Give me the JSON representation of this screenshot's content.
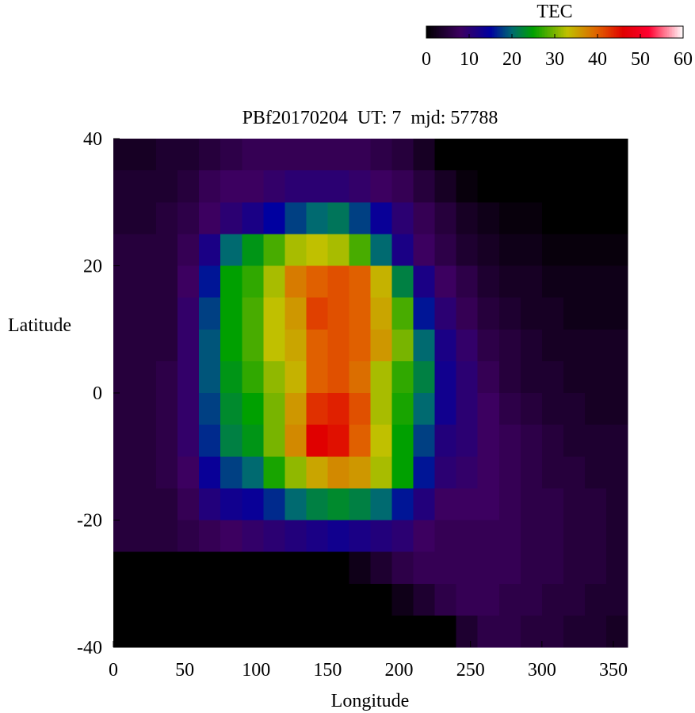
{
  "chart_data": {
    "type": "heatmap",
    "title": "PBf20170204  UT: 7  mjd: 57788",
    "colorbar_title": "TEC",
    "x_label": "Longitude",
    "y_label": "Latitude",
    "x": [
      7.5,
      22.5,
      37.5,
      52.5,
      67.5,
      82.5,
      97.5,
      112.5,
      127.5,
      142.5,
      157.5,
      172.5,
      187.5,
      202.5,
      217.5,
      232.5,
      247.5,
      262.5,
      277.5,
      292.5,
      307.5,
      322.5,
      337.5,
      352.5
    ],
    "y": [
      37.5,
      32.5,
      27.5,
      22.5,
      17.5,
      12.5,
      7.5,
      2.5,
      -2.5,
      -7.5,
      -12.5,
      -17.5,
      -22.5,
      -27.5,
      -32.5,
      -37.5
    ],
    "z": [
      [
        3,
        3,
        4,
        4,
        5,
        6,
        7,
        7,
        7,
        7,
        7,
        7,
        6,
        5,
        3,
        0,
        0,
        0,
        0,
        0,
        0,
        0,
        0,
        0
      ],
      [
        4,
        4,
        4,
        5,
        7,
        8,
        8,
        9,
        10,
        10,
        10,
        9,
        8,
        7,
        5,
        3,
        1,
        0,
        0,
        0,
        0,
        0,
        0,
        0
      ],
      [
        4,
        4,
        5,
        6,
        8,
        10,
        12,
        15,
        18,
        20,
        21,
        18,
        14,
        10,
        7,
        5,
        3,
        2,
        1,
        1,
        0,
        0,
        0,
        0
      ],
      [
        5,
        5,
        5,
        7,
        12,
        20,
        24,
        28,
        32,
        33,
        32,
        28,
        20,
        12,
        8,
        6,
        4,
        3,
        2,
        2,
        1,
        1,
        1,
        1
      ],
      [
        5,
        5,
        5,
        8,
        16,
        25,
        27,
        32,
        38,
        40,
        41,
        40,
        34,
        22,
        12,
        8,
        6,
        4,
        3,
        3,
        2,
        2,
        2,
        2
      ],
      [
        5,
        5,
        5,
        9,
        18,
        25,
        28,
        33,
        36,
        42,
        41,
        40,
        35,
        28,
        16,
        10,
        7,
        5,
        4,
        3,
        3,
        2,
        2,
        2
      ],
      [
        5,
        5,
        5,
        9,
        19,
        25,
        28,
        33,
        35,
        40,
        41,
        40,
        36,
        30,
        20,
        12,
        9,
        6,
        5,
        4,
        3,
        3,
        3,
        3
      ],
      [
        5,
        5,
        6,
        9,
        19,
        24,
        27,
        31,
        34,
        40,
        41,
        39,
        32,
        27,
        22,
        13,
        10,
        7,
        5,
        4,
        4,
        3,
        3,
        3
      ],
      [
        5,
        5,
        6,
        9,
        18,
        23,
        25,
        30,
        36,
        43,
        44,
        41,
        32,
        26,
        20,
        13,
        10,
        8,
        6,
        5,
        4,
        4,
        3,
        3
      ],
      [
        5,
        5,
        6,
        9,
        17,
        22,
        24,
        30,
        37,
        46,
        45,
        40,
        33,
        25,
        18,
        11,
        10,
        8,
        7,
        6,
        5,
        4,
        4,
        4
      ],
      [
        5,
        5,
        6,
        8,
        14,
        18,
        20,
        26,
        31,
        35,
        37,
        36,
        32,
        25,
        16,
        10,
        9,
        8,
        7,
        6,
        5,
        5,
        4,
        4
      ],
      [
        5,
        5,
        5,
        7,
        11,
        13,
        14,
        17,
        20,
        22,
        23,
        22,
        20,
        16,
        11,
        8,
        8,
        8,
        7,
        6,
        6,
        5,
        5,
        4
      ],
      [
        5,
        5,
        5,
        6,
        7,
        8,
        9,
        10,
        11,
        12,
        13,
        12,
        11,
        10,
        8,
        7,
        7,
        7,
        7,
        6,
        6,
        5,
        5,
        4
      ],
      [
        0,
        0,
        0,
        0,
        0,
        0,
        0,
        0,
        0,
        0,
        0,
        2,
        4,
        6,
        7,
        7,
        7,
        7,
        7,
        6,
        6,
        5,
        5,
        4
      ],
      [
        0,
        0,
        0,
        0,
        0,
        0,
        0,
        0,
        0,
        0,
        0,
        0,
        0,
        2,
        4,
        6,
        7,
        7,
        6,
        6,
        5,
        5,
        4,
        4
      ],
      [
        0,
        0,
        0,
        0,
        0,
        0,
        0,
        0,
        0,
        0,
        0,
        0,
        0,
        0,
        0,
        0,
        4,
        6,
        6,
        5,
        5,
        4,
        4,
        3
      ]
    ],
    "xlim": [
      0,
      360
    ],
    "xticks": [
      0,
      50,
      100,
      150,
      200,
      250,
      300,
      350
    ],
    "ylim": [
      -40,
      40
    ],
    "yticks": [
      -40,
      -20,
      0,
      20,
      40
    ],
    "colorbar_lim": [
      0,
      60
    ],
    "colorbar_ticks": [
      0,
      10,
      20,
      30,
      40,
      50,
      60
    ],
    "colorscale": [
      [
        0,
        "#000000"
      ],
      [
        8,
        "#3c0060"
      ],
      [
        15,
        "#0000a0"
      ],
      [
        20,
        "#006a70"
      ],
      [
        25,
        "#00a000"
      ],
      [
        33,
        "#c0c000"
      ],
      [
        40,
        "#e06000"
      ],
      [
        46,
        "#e00000"
      ],
      [
        52,
        "#ff0030"
      ],
      [
        60,
        "#ffffff"
      ]
    ]
  }
}
